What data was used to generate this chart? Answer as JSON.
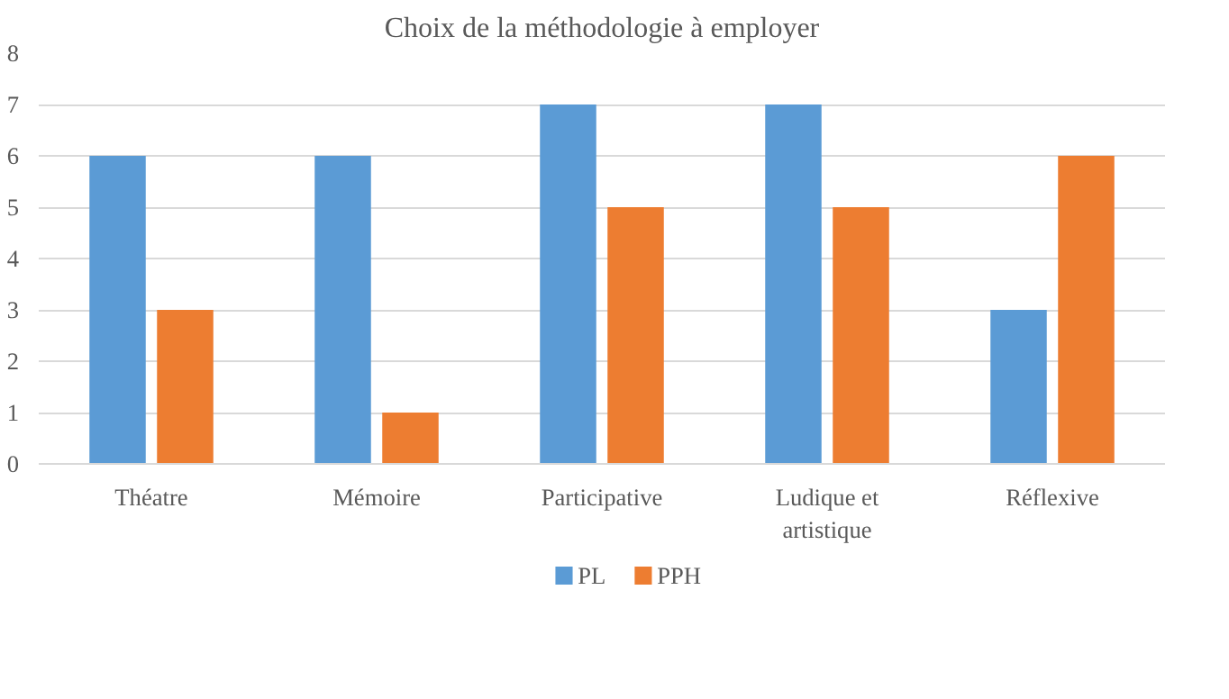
{
  "chart_data": {
    "type": "bar",
    "title": "Choix de la méthodologie à employer",
    "categories": [
      "Théatre",
      "Mémoire",
      "Participative",
      "Ludique et artistique",
      "Réflexive"
    ],
    "series": [
      {
        "name": "PL",
        "color": "#5b9bd5",
        "values": [
          6,
          6,
          7,
          7,
          3
        ]
      },
      {
        "name": "PPH",
        "color": "#ed7d31",
        "values": [
          3,
          1,
          5,
          5,
          6
        ]
      }
    ],
    "ylim": [
      0,
      8
    ],
    "yticks": [
      0,
      1,
      2,
      3,
      4,
      5,
      6,
      7,
      8
    ],
    "grid": "y",
    "legend": "bottom"
  }
}
